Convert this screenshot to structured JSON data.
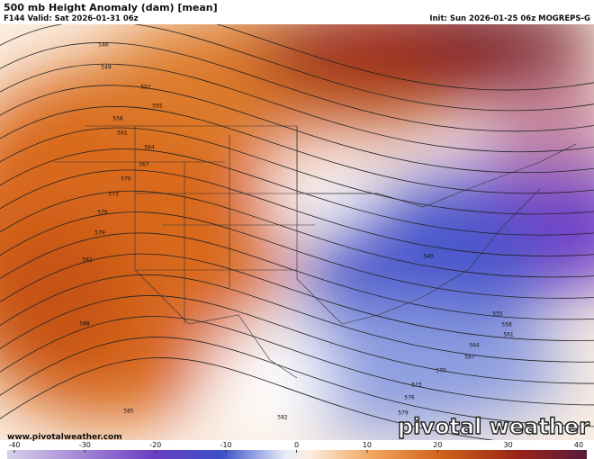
{
  "header": {
    "title": "500 mb Height Anomaly (dam) [mean]",
    "valid": "F144 Valid: Sat 2026-01-31 06z",
    "init": "Init: Sun 2026-01-25 06z MOGREPS-G"
  },
  "footer": {
    "website": "www.pivotalweather.com",
    "watermark": "pivotal weather"
  },
  "contour_labels": [
    546,
    549,
    552,
    555,
    558,
    561,
    564,
    567,
    570,
    573,
    576,
    579,
    582,
    588,
    540,
    555,
    558,
    561,
    564,
    567,
    570,
    573,
    576,
    579,
    585,
    582
  ],
  "colorbar": {
    "ticks": [
      -40,
      -30,
      -20,
      -10,
      0,
      10,
      20,
      30,
      40
    ],
    "lim": [
      -40,
      40
    ]
  }
}
